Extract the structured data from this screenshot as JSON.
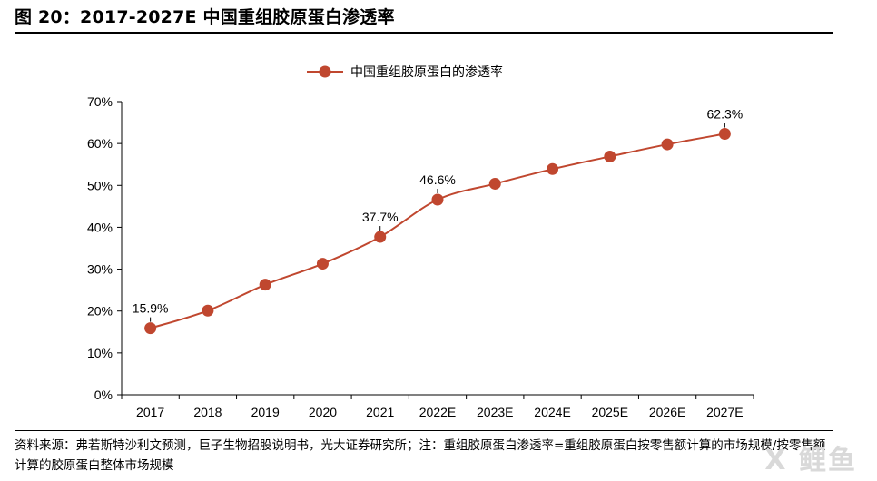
{
  "figure": {
    "title": "图 20：2017-2027E 中国重组胶原蛋白渗透率",
    "source_note": "资料来源：弗若斯特沙利文预测，巨子生物招股说明书，光大证券研究所；注：重组胶原蛋白渗透率=重组胶原蛋白按零售额计算的市场规模/按零售额计算的胶原蛋白整体市场规模",
    "watermark": "X 鲤鱼"
  },
  "chart_data": {
    "type": "line",
    "title": "",
    "xlabel": "",
    "ylabel": "",
    "categories": [
      "2017",
      "2018",
      "2019",
      "2020",
      "2021",
      "2022E",
      "2023E",
      "2024E",
      "2025E",
      "2026E",
      "2027E"
    ],
    "series": [
      {
        "name": "中国重组胶原蛋白的渗透率",
        "values": [
          15.9,
          20.1,
          26.3,
          31.3,
          37.7,
          46.6,
          50.4,
          53.9,
          56.9,
          59.8,
          62.3
        ],
        "color": "#c0472f"
      }
    ],
    "data_labels": [
      {
        "index": 0,
        "text": "15.9%"
      },
      {
        "index": 4,
        "text": "37.7%"
      },
      {
        "index": 5,
        "text": "46.6%"
      },
      {
        "index": 10,
        "text": "62.3%"
      }
    ],
    "ylim": [
      0,
      70
    ],
    "yticks": [
      0,
      10,
      20,
      30,
      40,
      50,
      60,
      70
    ],
    "ytick_labels": [
      "0%",
      "10%",
      "20%",
      "30%",
      "40%",
      "50%",
      "60%",
      "70%"
    ],
    "grid": false,
    "legend_position": "top-center",
    "line_smoothed": true
  }
}
